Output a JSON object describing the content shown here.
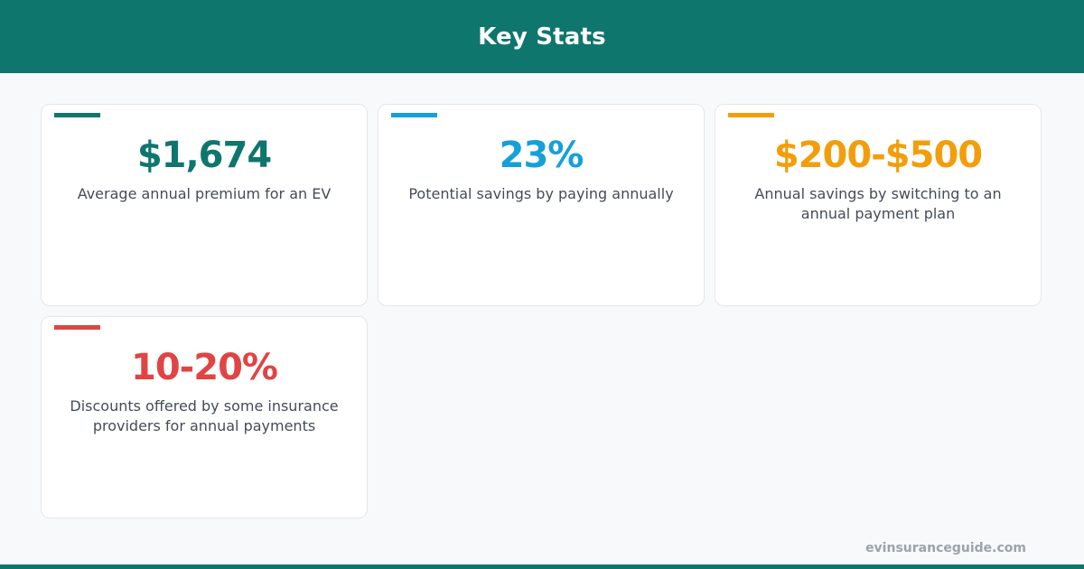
{
  "header": {
    "title": "Key Stats"
  },
  "stats": [
    {
      "value": "$1,674",
      "description": "Average annual premium for an EV",
      "color": "#0f766e"
    },
    {
      "value": "23%",
      "description": "Potential savings by paying annually",
      "color": "#14a0d8"
    },
    {
      "value": "$200-$500",
      "description": "Annual savings by switching to an annual payment plan",
      "color": "#f29e0c"
    },
    {
      "value": "10-20%",
      "description": "Discounts offered by some insurance providers for annual payments",
      "color": "#e04444"
    }
  ],
  "footer": {
    "site": "evinsuranceguide.com"
  },
  "colors": {
    "brand": "#0f766e",
    "background": "#f8f9fb",
    "text": "#444c58"
  }
}
